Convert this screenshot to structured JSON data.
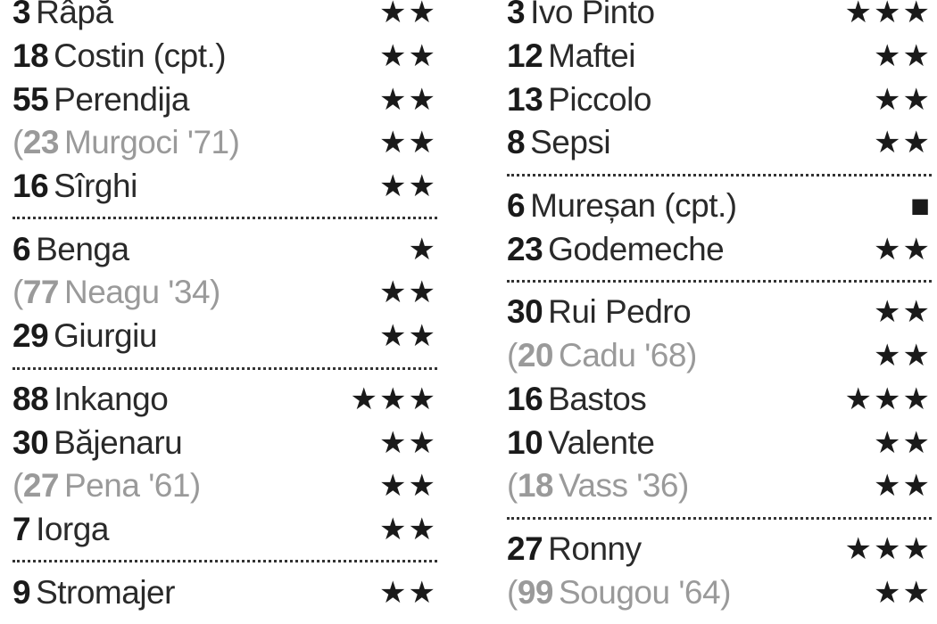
{
  "left": {
    "groups": [
      [
        {
          "num": "3",
          "name": "Râpă",
          "rating": "★★"
        },
        {
          "num": "18",
          "name": "Costin (cpt.)",
          "rating": "★★"
        },
        {
          "num": "55",
          "name": "Perendija",
          "rating": "★★"
        },
        {
          "num": "23",
          "name": "Murgoci",
          "minute": "'71",
          "sub": true,
          "rating": "★★"
        },
        {
          "num": "16",
          "name": "Sîrghi",
          "rating": "★★"
        }
      ],
      [
        {
          "num": "6",
          "name": "Benga",
          "rating": "★"
        },
        {
          "num": "77",
          "name": "Neagu",
          "minute": "'34",
          "sub": true,
          "rating": "★★"
        },
        {
          "num": "29",
          "name": "Giurgiu",
          "rating": "★★"
        }
      ],
      [
        {
          "num": "88",
          "name": "Inkango",
          "rating": "★★★"
        },
        {
          "num": "30",
          "name": "Băjenaru",
          "rating": "★★"
        },
        {
          "num": "27",
          "name": "Pena",
          "minute": "'61",
          "sub": true,
          "rating": "★★"
        },
        {
          "num": "7",
          "name": "Iorga",
          "rating": "★★"
        }
      ],
      [
        {
          "num": "9",
          "name": "Stromajer",
          "rating": "★★"
        }
      ]
    ]
  },
  "right": {
    "groups": [
      [
        {
          "num": "3",
          "name": "Ivo Pinto",
          "rating": "★★★"
        },
        {
          "num": "12",
          "name": "Maftei",
          "rating": "★★"
        },
        {
          "num": "13",
          "name": "Piccolo",
          "rating": "★★"
        },
        {
          "num": "8",
          "name": "Sepsi",
          "rating": "★★"
        }
      ],
      [
        {
          "num": "6",
          "name": "Mureșan (cpt.)",
          "rating": "■"
        },
        {
          "num": "23",
          "name": "Godemeche",
          "rating": "★★"
        }
      ],
      [
        {
          "num": "30",
          "name": "Rui Pedro",
          "rating": "★★"
        },
        {
          "num": "20",
          "name": "Cadu",
          "minute": "'68",
          "sub": true,
          "rating": "★★"
        },
        {
          "num": "16",
          "name": "Bastos",
          "rating": "★★★"
        },
        {
          "num": "10",
          "name": "Valente",
          "rating": "★★"
        },
        {
          "num": "18",
          "name": "Vass",
          "minute": "'36",
          "sub": true,
          "rating": "★★"
        }
      ],
      [
        {
          "num": "27",
          "name": "Ronny",
          "rating": "★★★"
        },
        {
          "num": "99",
          "name": "Sougou",
          "minute": "'64",
          "sub": true,
          "rating": "★★"
        }
      ]
    ]
  },
  "punctuation": {
    "open": "(",
    "close": ")"
  }
}
